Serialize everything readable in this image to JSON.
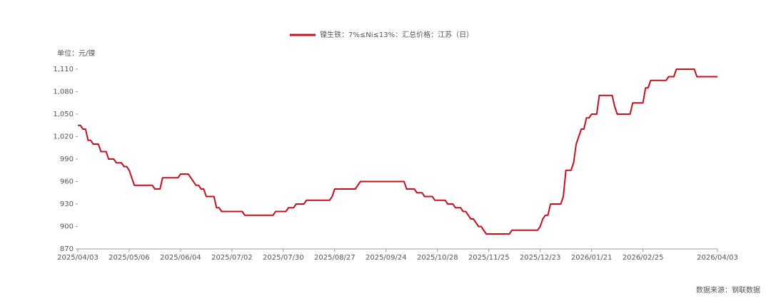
{
  "chart_data": {
    "type": "line",
    "unit": "单位：元/镍",
    "source": "数据来源：钢联数据",
    "categories": [
      "2025/04/03",
      null,
      null,
      null,
      null,
      null,
      null,
      null,
      null,
      null,
      null,
      null,
      null,
      null,
      null,
      null,
      null,
      null,
      null,
      null,
      "2025/05/06",
      null,
      null,
      null,
      null,
      null,
      null,
      null,
      null,
      null,
      null,
      null,
      null,
      null,
      null,
      null,
      null,
      null,
      null,
      null,
      "2025/06/04",
      null,
      null,
      null,
      null,
      null,
      null,
      null,
      null,
      null,
      null,
      null,
      null,
      null,
      null,
      null,
      null,
      null,
      null,
      null,
      "2025/07/02",
      null,
      null,
      null,
      null,
      null,
      null,
      null,
      null,
      null,
      null,
      null,
      null,
      null,
      null,
      null,
      null,
      null,
      null,
      null,
      "2025/07/30",
      null,
      null,
      null,
      null,
      null,
      null,
      null,
      null,
      null,
      null,
      null,
      null,
      null,
      null,
      null,
      null,
      null,
      null,
      null,
      "2025/08/27",
      null,
      null,
      null,
      null,
      null,
      null,
      null,
      null,
      null,
      null,
      null,
      null,
      null,
      null,
      null,
      null,
      null,
      null,
      null,
      "2025/09/24",
      null,
      null,
      null,
      null,
      null,
      null,
      null,
      null,
      null,
      null,
      null,
      null,
      null,
      null,
      null,
      null,
      null,
      null,
      null,
      "2025/10/28",
      null,
      null,
      null,
      null,
      null,
      null,
      null,
      null,
      null,
      null,
      null,
      null,
      null,
      null,
      null,
      null,
      null,
      null,
      null,
      "2025/11/25",
      null,
      null,
      null,
      null,
      null,
      null,
      null,
      null,
      null,
      null,
      null,
      null,
      null,
      null,
      null,
      null,
      null,
      null,
      null,
      "2025/12/23",
      null,
      null,
      null,
      null,
      null,
      null,
      null,
      null,
      null,
      null,
      null,
      null,
      null,
      null,
      null,
      null,
      null,
      null,
      null,
      "2026/01/21",
      null,
      null,
      null,
      null,
      null,
      null,
      null,
      null,
      null,
      null,
      null,
      null,
      null,
      null,
      null,
      null,
      null,
      null,
      null,
      "2026/02/25",
      null,
      null,
      null,
      null,
      null,
      null,
      null,
      null,
      null,
      null,
      null,
      null,
      null,
      null,
      null,
      null,
      null,
      null,
      null,
      null,
      null,
      null,
      null,
      null,
      null,
      null,
      null,
      null,
      "2026/04/03"
    ],
    "series": [
      {
        "name": "镍生铁：7%≤Ni≤13%：汇总价格：江苏（日）",
        "color": "#c0121f",
        "values": [
          1035,
          1035,
          1030,
          1030,
          1015,
          1015,
          1010,
          1010,
          1010,
          1000,
          1000,
          1000,
          990,
          990,
          990,
          985,
          985,
          985,
          980,
          980,
          975,
          965,
          955,
          955,
          955,
          955,
          955,
          955,
          955,
          955,
          950,
          950,
          950,
          965,
          965,
          965,
          965,
          965,
          965,
          965,
          970,
          970,
          970,
          970,
          965,
          960,
          955,
          955,
          950,
          950,
          940,
          940,
          940,
          940,
          925,
          925,
          920,
          920,
          920,
          920,
          920,
          920,
          920,
          920,
          920,
          915,
          915,
          915,
          915,
          915,
          915,
          915,
          915,
          915,
          915,
          915,
          915,
          920,
          920,
          920,
          920,
          920,
          925,
          925,
          925,
          930,
          930,
          930,
          930,
          935,
          935,
          935,
          935,
          935,
          935,
          935,
          935,
          935,
          935,
          940,
          950,
          950,
          950,
          950,
          950,
          950,
          950,
          950,
          950,
          955,
          960,
          960,
          960,
          960,
          960,
          960,
          960,
          960,
          960,
          960,
          960,
          960,
          960,
          960,
          960,
          960,
          960,
          960,
          950,
          950,
          950,
          950,
          945,
          945,
          945,
          940,
          940,
          940,
          940,
          935,
          935,
          935,
          935,
          935,
          930,
          930,
          930,
          925,
          925,
          925,
          920,
          920,
          915,
          910,
          910,
          905,
          900,
          900,
          895,
          890,
          890,
          890,
          890,
          890,
          890,
          890,
          890,
          890,
          890,
          895,
          895,
          895,
          895,
          895,
          895,
          895,
          895,
          895,
          895,
          895,
          900,
          910,
          915,
          915,
          930,
          930,
          930,
          930,
          930,
          940,
          975,
          975,
          975,
          985,
          1010,
          1020,
          1030,
          1030,
          1045,
          1045,
          1050,
          1050,
          1050,
          1075,
          1075,
          1075,
          1075,
          1075,
          1075,
          1060,
          1050,
          1050,
          1050,
          1050,
          1050,
          1050,
          1065,
          1065,
          1065,
          1065,
          1065,
          1085,
          1085,
          1095,
          1095,
          1095,
          1095,
          1095,
          1095,
          1095,
          1100,
          1100,
          1100,
          1110,
          1110,
          1110,
          1110,
          1110,
          1110,
          1110,
          1110,
          1100,
          1100,
          1100,
          1100,
          1100,
          1100,
          1100,
          1100,
          1100
        ]
      }
    ],
    "ylim": [
      870,
      1110
    ],
    "yticks": [
      870,
      900,
      930,
      960,
      990,
      {
        "value": 1020,
        "label": "1,020"
      },
      {
        "value": 1050,
        "label": "1,050"
      },
      {
        "value": 1080,
        "label": "1,080"
      },
      {
        "value": 1110,
        "label": "1,110"
      }
    ],
    "grid": false,
    "legend": "top"
  }
}
